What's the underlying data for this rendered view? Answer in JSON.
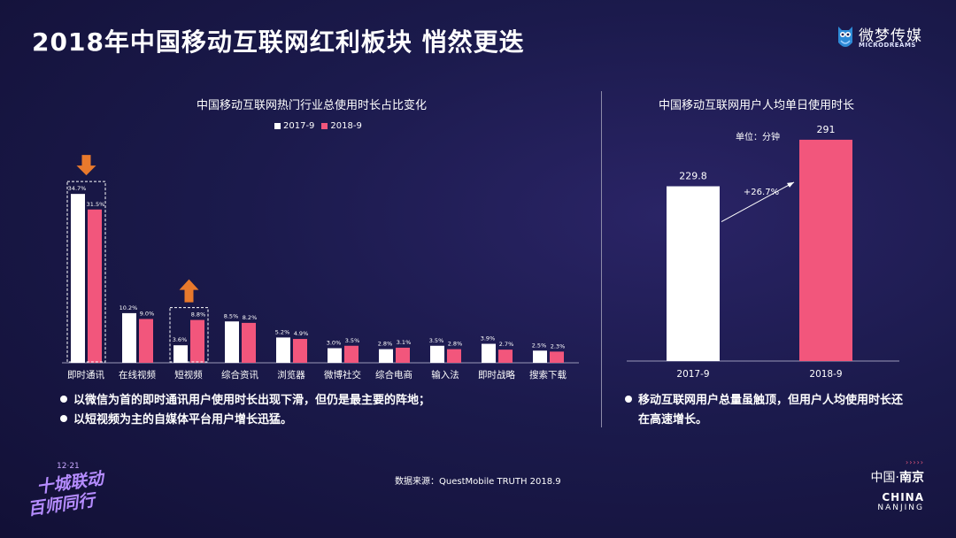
{
  "header": {
    "title": "2018年中国移动互联网红利板块  悄然更迭",
    "logo_cn": "微梦传媒",
    "logo_en": "MICRODREAMS"
  },
  "chart_data": [
    {
      "type": "bar",
      "title": "中国移动互联网热门行业总使用时长占比变化",
      "categories": [
        "即时通讯",
        "在线视频",
        "短视频",
        "综合资讯",
        "浏览器",
        "微博社交",
        "综合电商",
        "输入法",
        "即时战略",
        "搜索下载"
      ],
      "series": [
        {
          "name": "2017-9",
          "color": "#ffffff",
          "values": [
            34.7,
            10.2,
            3.6,
            8.5,
            5.2,
            3.0,
            2.8,
            3.5,
            3.9,
            2.5
          ]
        },
        {
          "name": "2018-9",
          "color": "#f2567c",
          "values": [
            31.5,
            9.0,
            8.8,
            8.2,
            4.9,
            3.5,
            3.1,
            2.8,
            2.7,
            2.3
          ]
        }
      ],
      "value_labels": {
        "2017-9": [
          "34.7%",
          "10.2%",
          "3.6%",
          "8.5%",
          "5.2%",
          "3.0%",
          "2.8%",
          "3.5%",
          "3.9%",
          "2.5%"
        ],
        "2018-9": [
          "31.5%",
          "9.0%",
          "8.8%",
          "8.2%",
          "4.9%",
          "3.5%",
          "3.1%",
          "2.8%",
          "2.7%",
          "2.3%"
        ]
      },
      "ylim": [
        0,
        40
      ],
      "legend_position": "top",
      "grid": false,
      "annotations": [
        {
          "category": "即时通讯",
          "arrow": "down"
        },
        {
          "category": "短视频",
          "arrow": "up"
        }
      ]
    },
    {
      "type": "bar",
      "title": "中国移动互联网用户人均单日使用时长",
      "unit_label": "单位：分钟",
      "categories": [
        "2017-9",
        "2018-9"
      ],
      "values": [
        229.8,
        291
      ],
      "value_labels": [
        "229.8",
        "291"
      ],
      "colors": [
        "#ffffff",
        "#f2567c"
      ],
      "ylim": [
        0,
        320
      ],
      "growth_label": "+26.7%",
      "grid": false
    }
  ],
  "bullets_left": [
    "以微信为首的即时通讯用户使用时长出现下滑，但仍是最主要的阵地；",
    "以短视频为主的自媒体平台用户增长迅猛。"
  ],
  "bullets_right": [
    "移动互联网用户总量虽触顶，但用户人均使用时长还",
    "在高速增长。"
  ],
  "source": "数据来源：QuestMobile TRUTH  2018.9",
  "footer": {
    "dots": "›››››",
    "city_cn_1": "中国·",
    "city_cn_2": "南京",
    "en_1": "CHINA",
    "en_2": "NANJING",
    "event_date": "12·21",
    "event_line1": "十城联动",
    "event_line2": "百师同行"
  },
  "colors": {
    "accent_pink": "#f2567c",
    "arrow_orange": "#e8792c",
    "background": "#1b1a4c"
  }
}
